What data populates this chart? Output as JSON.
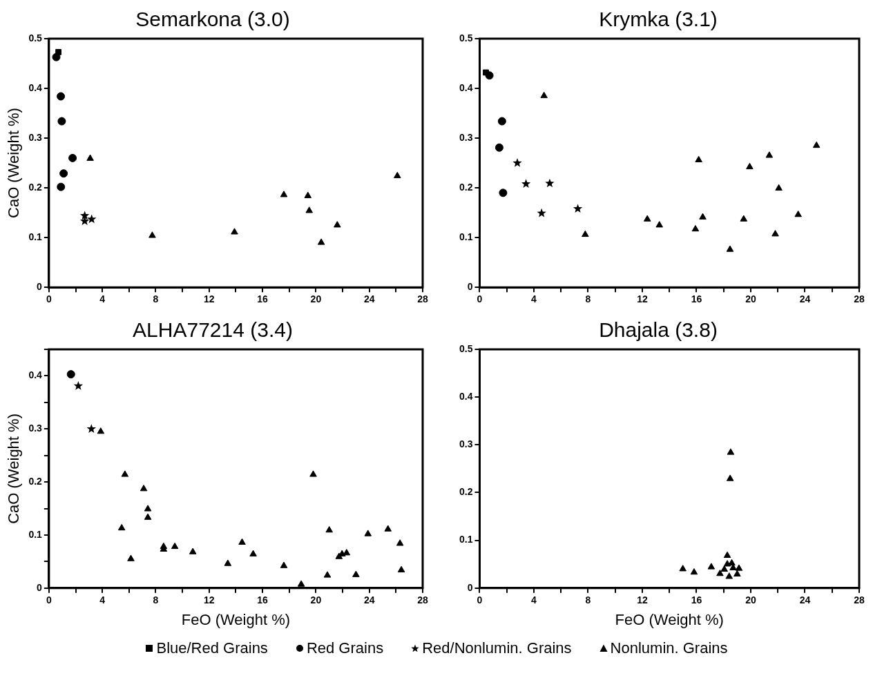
{
  "chart_data": [
    {
      "type": "scatter",
      "title": "Semarkona (3.0)",
      "ylabel": "CaO (Weight %)",
      "xlim": [
        0,
        28
      ],
      "ylim": [
        0,
        0.5
      ],
      "xticks": [
        0,
        {
          "value": 2,
          "label": null
        },
        4,
        {
          "value": 6,
          "label": null
        },
        8,
        {
          "value": 10,
          "label": null
        },
        12,
        {
          "value": 14,
          "label": null
        },
        16,
        {
          "value": 18,
          "label": null
        },
        20,
        {
          "value": 22,
          "label": null
        },
        24,
        {
          "value": 26,
          "label": null
        },
        28
      ],
      "yticks": [
        0,
        0.1,
        0.2,
        0.3,
        0.4,
        0.5
      ],
      "grid": false,
      "legend": "bottom",
      "series": [
        {
          "name": "Blue/Red Grains",
          "color": "#000000",
          "marker": "square",
          "x": [
            0.71
          ],
          "values": [
            0.473
          ]
        },
        {
          "name": "Red Grains",
          "color": "#000000",
          "marker": "circle",
          "x": [
            0.55,
            0.89,
            0.96,
            1.77,
            1.1,
            0.9
          ],
          "values": [
            0.463,
            0.384,
            0.334,
            0.26,
            0.229,
            0.202
          ]
        },
        {
          "name": "Red/Nonlumin. Grains",
          "color": "#000000",
          "marker": "star",
          "x": [
            2.68,
            2.68,
            3.2
          ],
          "values": [
            0.144,
            0.133,
            0.137
          ]
        },
        {
          "name": "Nonlumin. Grains",
          "color": "#000000",
          "marker": "triangle",
          "x": [
            3.09,
            7.74,
            13.9,
            17.6,
            19.4,
            19.5,
            21.6,
            20.4,
            26.1
          ],
          "values": [
            0.259,
            0.104,
            0.111,
            0.186,
            0.184,
            0.154,
            0.125,
            0.09,
            0.224
          ]
        }
      ]
    },
    {
      "type": "scatter",
      "title": "Krymka (3.1)",
      "xlim": [
        0,
        28
      ],
      "ylim": [
        0,
        0.5
      ],
      "xticks": [
        0,
        {
          "value": 2,
          "label": null
        },
        4,
        {
          "value": 6,
          "label": null
        },
        8,
        {
          "value": 10,
          "label": null
        },
        12,
        {
          "value": 14,
          "label": null
        },
        16,
        {
          "value": 18,
          "label": null
        },
        20,
        {
          "value": 22,
          "label": null
        },
        24,
        {
          "value": 26,
          "label": null
        },
        28
      ],
      "yticks": [
        0,
        0.1,
        0.2,
        0.3,
        0.4,
        0.5
      ],
      "grid": false,
      "legend": "bottom",
      "series": [
        {
          "name": "Blue/Red Grains",
          "color": "#000000",
          "marker": "square",
          "x": [
            0.46
          ],
          "values": [
            0.432
          ]
        },
        {
          "name": "Red Grains",
          "color": "#000000",
          "marker": "circle",
          "x": [
            0.72,
            1.65,
            1.45,
            1.73
          ],
          "values": [
            0.426,
            0.334,
            0.281,
            0.19
          ]
        },
        {
          "name": "Red/Nonlumin. Grains",
          "color": "#000000",
          "marker": "star",
          "x": [
            2.78,
            3.42,
            5.17,
            4.57,
            7.24
          ],
          "values": [
            0.25,
            0.208,
            0.209,
            0.149,
            0.158
          ]
        },
        {
          "name": "Nonlumin. Grains",
          "color": "#000000",
          "marker": "triangle",
          "x": [
            4.75,
            7.79,
            12.37,
            13.26,
            16.16,
            16.46,
            15.92,
            18.47,
            19.48,
            19.92,
            21.37,
            22.07,
            21.81,
            23.5,
            24.85
          ],
          "values": [
            0.385,
            0.106,
            0.137,
            0.125,
            0.256,
            0.141,
            0.117,
            0.076,
            0.137,
            0.242,
            0.265,
            0.199,
            0.107,
            0.146,
            0.285
          ]
        }
      ]
    },
    {
      "type": "scatter",
      "title": "ALHA77214 (3.4)",
      "xlabel": "FeO (Weight %)",
      "ylabel": "CaO (Weight %)",
      "xlim": [
        0,
        28
      ],
      "ylim": [
        0,
        0.45
      ],
      "xticks": [
        0,
        {
          "value": 2,
          "label": null
        },
        4,
        {
          "value": 6,
          "label": null
        },
        8,
        {
          "value": 10,
          "label": null
        },
        12,
        {
          "value": 14,
          "label": null
        },
        16,
        {
          "value": 18,
          "label": null
        },
        20,
        {
          "value": 22,
          "label": null
        },
        24,
        {
          "value": 26,
          "label": null
        },
        28
      ],
      "yticks": [
        0,
        {
          "value": 0.05,
          "label": null
        },
        0.1,
        {
          "value": 0.15,
          "label": null
        },
        0.2,
        {
          "value": 0.25,
          "label": null
        },
        0.3,
        {
          "value": 0.35,
          "label": null
        },
        0.4,
        {
          "value": 0.45,
          "label": null
        }
      ],
      "grid": false,
      "legend": "bottom",
      "series": [
        {
          "name": "Red Grains",
          "color": "#000000",
          "marker": "circle",
          "x": [
            1.65
          ],
          "values": [
            0.403
          ]
        },
        {
          "name": "Red/Nonlumin. Grains",
          "color": "#000000",
          "marker": "star",
          "x": [
            2.2,
            3.18
          ],
          "values": [
            0.381,
            0.3
          ]
        },
        {
          "name": "Nonlumin. Grains",
          "color": "#000000",
          "marker": "triangle",
          "x": [
            3.88,
            5.69,
            5.45,
            6.14,
            7.1,
            7.41,
            7.41,
            8.59,
            8.59,
            9.43,
            10.78,
            13.4,
            14.47,
            15.3,
            17.6,
            18.9,
            19.8,
            21.0,
            20.86,
            21.73,
            21.96,
            22.3,
            23.0,
            23.9,
            25.4,
            26.3,
            26.4
          ],
          "values": [
            0.295,
            0.214,
            0.113,
            0.055,
            0.187,
            0.149,
            0.133,
            0.078,
            0.073,
            0.078,
            0.068,
            0.046,
            0.086,
            0.064,
            0.042,
            0.007,
            0.214,
            0.109,
            0.024,
            0.059,
            0.064,
            0.066,
            0.025,
            0.102,
            0.111,
            0.084,
            0.034
          ]
        }
      ]
    },
    {
      "type": "scatter",
      "title": "Dhajala (3.8)",
      "xlabel": "FeO (Weight %)",
      "xlim": [
        0,
        28
      ],
      "ylim": [
        0,
        0.5
      ],
      "xticks": [
        0,
        {
          "value": 2,
          "label": null
        },
        4,
        {
          "value": 6,
          "label": null
        },
        8,
        {
          "value": 10,
          "label": null
        },
        12,
        {
          "value": 14,
          "label": null
        },
        16,
        {
          "value": 18,
          "label": null
        },
        20,
        {
          "value": 22,
          "label": null
        },
        24,
        {
          "value": 26,
          "label": null
        },
        28
      ],
      "yticks": [
        0,
        0.1,
        0.2,
        0.3,
        0.4,
        0.5
      ],
      "grid": false,
      "legend": "bottom",
      "series": [
        {
          "name": "Nonlumin. Grains",
          "color": "#000000",
          "marker": "triangle",
          "x": [
            18.52,
            18.48,
            14.99,
            15.82,
            17.09,
            18.27,
            18.05,
            18.48,
            18.7,
            19.13,
            17.73,
            18.41,
            19.0,
            18.27,
            18.6
          ],
          "values": [
            0.284,
            0.229,
            0.04,
            0.033,
            0.044,
            0.068,
            0.039,
            null,
            0.042,
            0.041,
            0.03,
            0.024,
            0.029,
            0.05,
            0.052
          ]
        }
      ]
    }
  ]
}
